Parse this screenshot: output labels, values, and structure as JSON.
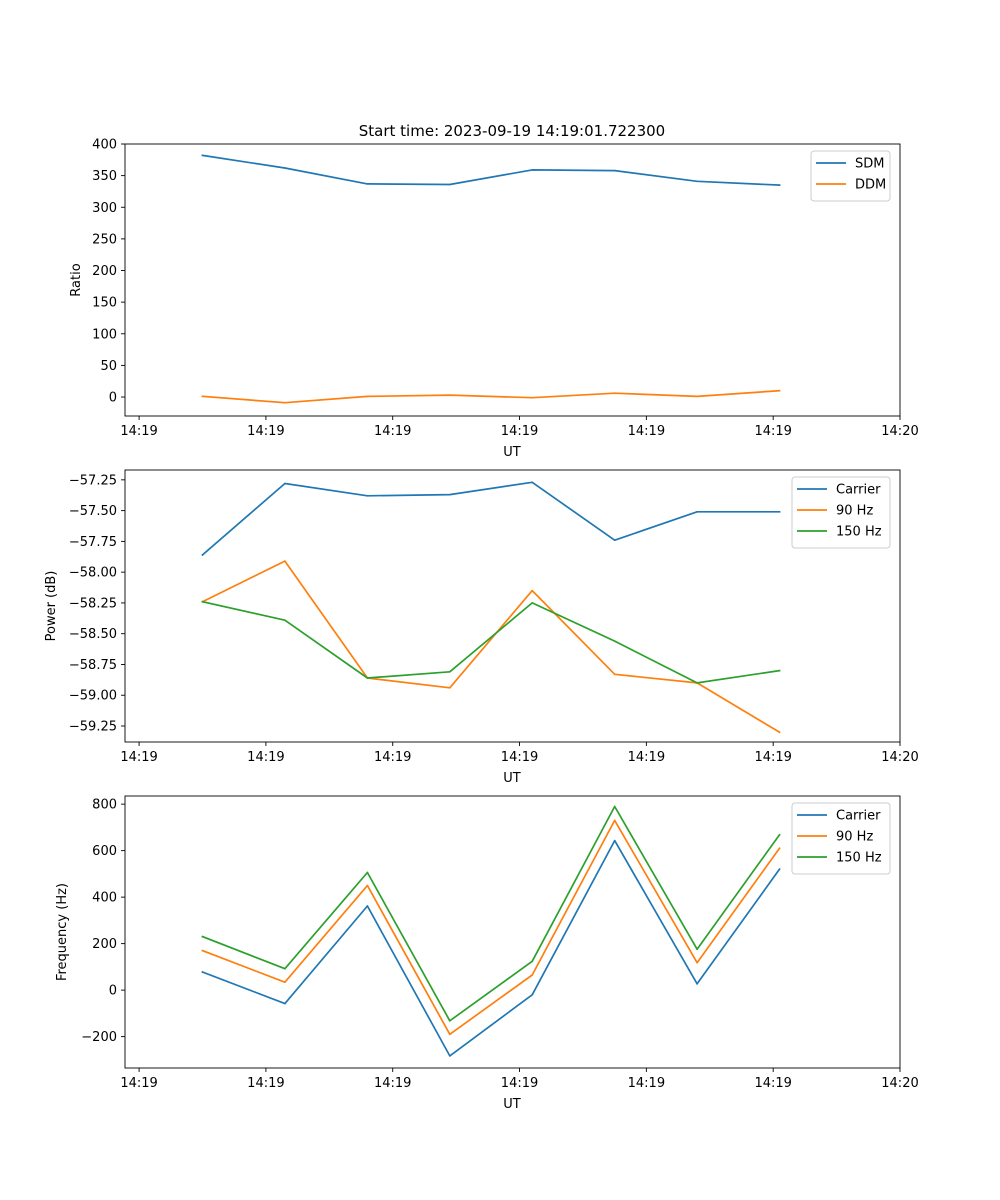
{
  "figure_title": "Start time: 2023-09-19 14:19:01.722300",
  "chart_data": [
    {
      "type": "line",
      "ylabel": "Ratio",
      "xlabel": "UT",
      "xlim": [
        0,
        11
      ],
      "ylim": [
        -30,
        400
      ],
      "x_ticks": [
        0.2,
        2,
        3.8,
        5.6,
        7.4,
        9.2,
        11
      ],
      "x_tick_labels": [
        "14:19",
        "14:19",
        "14:19",
        "14:19",
        "14:19",
        "14:19",
        "14:20"
      ],
      "y_ticks": [
        0,
        50,
        100,
        150,
        200,
        250,
        300,
        350,
        400
      ],
      "y_tick_labels": [
        "0",
        "50",
        "100",
        "150",
        "200",
        "250",
        "300",
        "350",
        "400"
      ],
      "x": [
        1.1,
        2.27,
        3.44,
        4.61,
        5.78,
        6.95,
        8.12,
        9.29
      ],
      "legend_position": "top-right",
      "series": [
        {
          "name": "SDM",
          "color": "#1f77b4",
          "values": [
            382,
            362,
            337,
            336,
            359,
            358,
            341,
            335
          ]
        },
        {
          "name": "DDM",
          "color": "#ff7f0e",
          "values": [
            1,
            -9,
            1,
            3,
            -1,
            6,
            1,
            10
          ]
        }
      ]
    },
    {
      "type": "line",
      "ylabel": "Power (dB)",
      "xlabel": "UT",
      "xlim": [
        0,
        11
      ],
      "ylim": [
        -59.38,
        -57.17
      ],
      "x_ticks": [
        0.2,
        2,
        3.8,
        5.6,
        7.4,
        9.2,
        11
      ],
      "x_tick_labels": [
        "14:19",
        "14:19",
        "14:19",
        "14:19",
        "14:19",
        "14:19",
        "14:20"
      ],
      "y_ticks": [
        -59.25,
        -59.0,
        -58.75,
        -58.5,
        -58.25,
        -58.0,
        -57.75,
        -57.5,
        -57.25
      ],
      "y_tick_labels": [
        "−59.25",
        "−59.00",
        "−58.75",
        "−58.50",
        "−58.25",
        "−58.00",
        "−57.75",
        "−57.50",
        "−57.25"
      ],
      "x": [
        1.1,
        2.27,
        3.44,
        4.61,
        5.78,
        6.95,
        8.12,
        9.29
      ],
      "legend_position": "top-right",
      "series": [
        {
          "name": "Carrier",
          "color": "#1f77b4",
          "values": [
            -57.86,
            -57.28,
            -57.38,
            -57.37,
            -57.27,
            -57.74,
            -57.51,
            -57.51
          ]
        },
        {
          "name": "90 Hz",
          "color": "#ff7f0e",
          "values": [
            -58.24,
            -57.91,
            -58.86,
            -58.94,
            -58.15,
            -58.83,
            -58.9,
            -59.3
          ]
        },
        {
          "name": "150 Hz",
          "color": "#2ca02c",
          "values": [
            -58.24,
            -58.39,
            -58.86,
            -58.81,
            -58.25,
            -58.56,
            -58.9,
            -58.8
          ]
        }
      ]
    },
    {
      "type": "line",
      "ylabel": "Frequency (Hz)",
      "xlabel": "UT",
      "xlim": [
        0,
        11
      ],
      "ylim": [
        -335,
        835
      ],
      "x_ticks": [
        0.2,
        2,
        3.8,
        5.6,
        7.4,
        9.2,
        11
      ],
      "x_tick_labels": [
        "14:19",
        "14:19",
        "14:19",
        "14:19",
        "14:19",
        "14:19",
        "14:20"
      ],
      "y_ticks": [
        -200,
        0,
        200,
        400,
        600,
        800
      ],
      "y_tick_labels": [
        "−200",
        "0",
        "200",
        "400",
        "600",
        "800"
      ],
      "x": [
        1.1,
        2.27,
        3.44,
        4.61,
        5.78,
        6.95,
        8.12,
        9.29
      ],
      "legend_position": "top-right",
      "series": [
        {
          "name": "Carrier",
          "color": "#1f77b4",
          "values": [
            78,
            -58,
            362,
            -283,
            -20,
            643,
            27,
            520
          ]
        },
        {
          "name": "90 Hz",
          "color": "#ff7f0e",
          "values": [
            170,
            34,
            450,
            -190,
            65,
            730,
            118,
            610
          ]
        },
        {
          "name": "150 Hz",
          "color": "#2ca02c",
          "values": [
            230,
            92,
            506,
            -132,
            124,
            790,
            176,
            668
          ]
        }
      ]
    }
  ]
}
